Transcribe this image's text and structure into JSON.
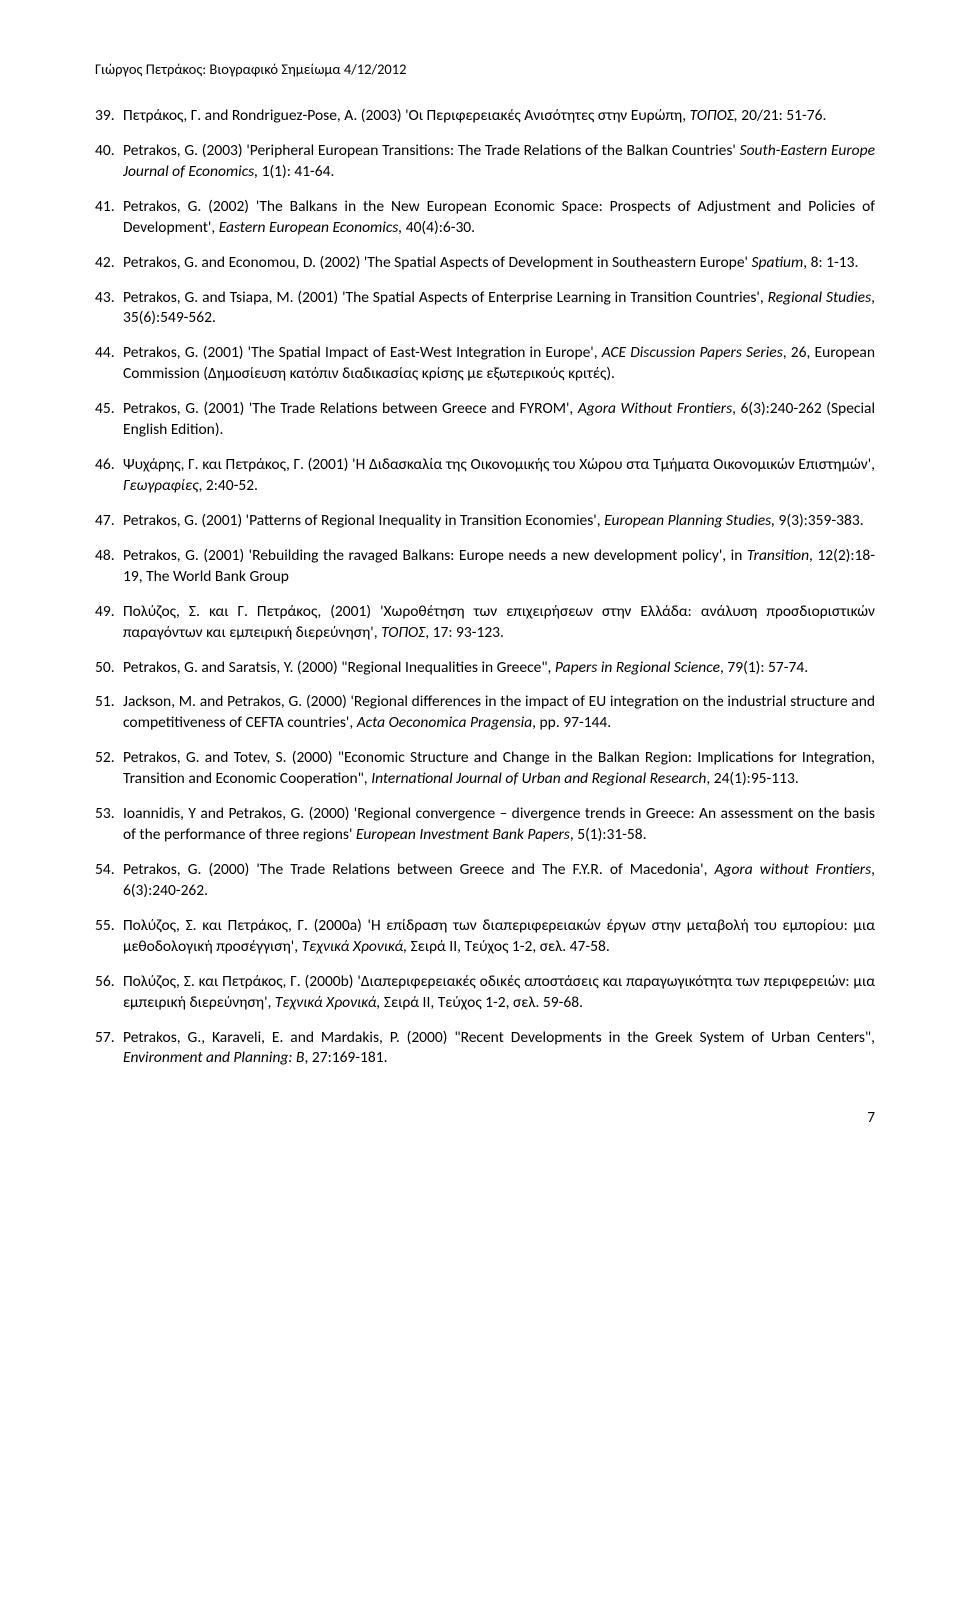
{
  "header": "Γιώργος Πετράκος: Βιογραφικό Σημείωμα 4/12/2012",
  "entries": [
    {
      "num": "39.",
      "html": "Πετράκος, Γ. and Rondriguez-Pose, A. (2003) 'Οι Περιφερειακές Ανισότητες στην Ευρώπη, <span class='italic'>ΤΟΠΟΣ,</span> 20/21: 51-76."
    },
    {
      "num": "40.",
      "html": "Petrakos, G. (2003) 'Peripheral European Transitions: The Trade Relations of the Balkan Countries' <span class='italic'>South-Eastern Europe Journal of Economics,</span> 1(1): 41-64."
    },
    {
      "num": "41.",
      "html": "Petrakos, G. (2002) 'The Balkans in the New European Economic Space: Prospects of Adjustment and Policies of Development', <span class='italic'>Eastern European Economics,</span> 40(4):6-30."
    },
    {
      "num": "42.",
      "html": "Petrakos, G. and Economou, D. (2002) 'The Spatial Aspects of Development in Southeastern Europe' <span class='italic'>Spatium</span>, 8: 1-13."
    },
    {
      "num": "43.",
      "html": "Petrakos, G. and Tsiapa, M. (2001) 'The Spatial Aspects of Enterprise Learning in Transition Countries', <span class='italic'>Regional Studies</span>, 35(6):549-562."
    },
    {
      "num": "44.",
      "html": "Petrakos, G. (2001) 'The Spatial Impact of East-West Integration in Europe', <span class='italic'>ACE Discussion Papers Series</span>, 26, European Commission (Δημοσίευση κατόπιν διαδικασίας κρίσης με εξωτερικούς κριτές)."
    },
    {
      "num": "45.",
      "html": "Petrakos, G. (2001) 'The Trade Relations between Greece and FYROM', <span class='italic'>Agora Without Frontiers</span>, 6(3):240-262 (Special English Edition)."
    },
    {
      "num": "46.",
      "html": "Ψυχάρης, Γ. και Πετράκος, Γ. (2001) 'Η Διδασκαλία της Οικονομικής του Χώρου στα Τμήματα Οικονομικών Επιστημών', <span class='italic'>Γεωγραφίες</span>, 2:40-52."
    },
    {
      "num": "47.",
      "html": "Petrakos, G. (2001) 'Patterns of Regional Inequality in Transition Economies', <span class='italic'>European Planning Studies,</span> 9(3):359-383."
    },
    {
      "num": "48.",
      "html": "Petrakos, G. (2001) 'Rebuilding the ravaged Balkans: Europe needs a new development policy', in <span class='italic'>Transition</span>, 12(2):18-19, The World Bank Group"
    },
    {
      "num": "49.",
      "html": "Πολύζος, Σ. και Γ. Πετράκος, (2001) 'Χωροθέτηση των επιχειρήσεων στην Ελλάδα: ανάλυση προσδιοριστικών παραγόντων και εμπειρική διερεύνηση', <span class='italic'>ΤΟΠΟΣ</span>, 17: 93-123."
    },
    {
      "num": "50.",
      "html": "Petrakos, G. and Saratsis, Y. (2000) \"Regional Inequalities in Greece\", <span class='italic'>Papers in Regional Science</span>, 79(1): 57-74."
    },
    {
      "num": "51.",
      "html": "Jackson, M. and Petrakos, G. (2000) 'Regional differences in the impact of EU integration on the industrial structure and competitiveness of CEFTA countries', <span class='italic'>Acta Oeconomica Pragensia</span>, pp. 97-144."
    },
    {
      "num": "52.",
      "html": "Petrakos, G. and Totev, S. (2000) \"Economic Structure and Change in the Balkan Region: Implications for Integration, Transition and Economic Cooperation\", <span class='italic'>International Journal of Urban and Regional Research</span>, 24(1):95-113."
    },
    {
      "num": "53.",
      "html": "Ioannidis, Y and Petrakos, G. (2000) 'Regional convergence – divergence trends in Greece: An assessment on the basis of the performance of three regions' <span class='italic'>European Investment Bank Papers</span>, 5(1):31-58."
    },
    {
      "num": "54.",
      "html": "Petrakos, G. (2000) 'The Trade Relations between Greece and The F.Y.R. of Macedonia', <span class='italic'>Agora without Frontiers</span>, 6(3):240-262."
    },
    {
      "num": "55.",
      "html": "Πολύζος, Σ. και Πετράκος, Γ. (2000a) 'Η επίδραση των διαπεριφερειακών έργων στην μεταβολή του εμπορίου: μια μεθοδολογική προσέγγιση', <span class='italic'>Τεχνικά Χρονικά,</span> Σειρά ΙΙ, Τεύχος 1-2, σελ. 47-58."
    },
    {
      "num": "56.",
      "html": "Πολύζος, Σ. και Πετράκος, Γ. (2000b) 'Διαπεριφερειακές οδικές αποστάσεις και παραγωγικότητα των περιφερειών: μια εμπειρική διερεύνηση', <span class='italic'>Τεχνικά Χρονικά,</span> Σειρά ΙΙ, Τεύχος 1-2, σελ. 59-68."
    },
    {
      "num": "57.",
      "html": "Petrakos, G., Karaveli, E. and Mardakis, P.  (2000) \"Recent Developments in the Greek System of Urban Centers\", <span class='italic'>Environment and Planning: B</span>, 27:169-181."
    }
  ],
  "pageNumber": "7"
}
